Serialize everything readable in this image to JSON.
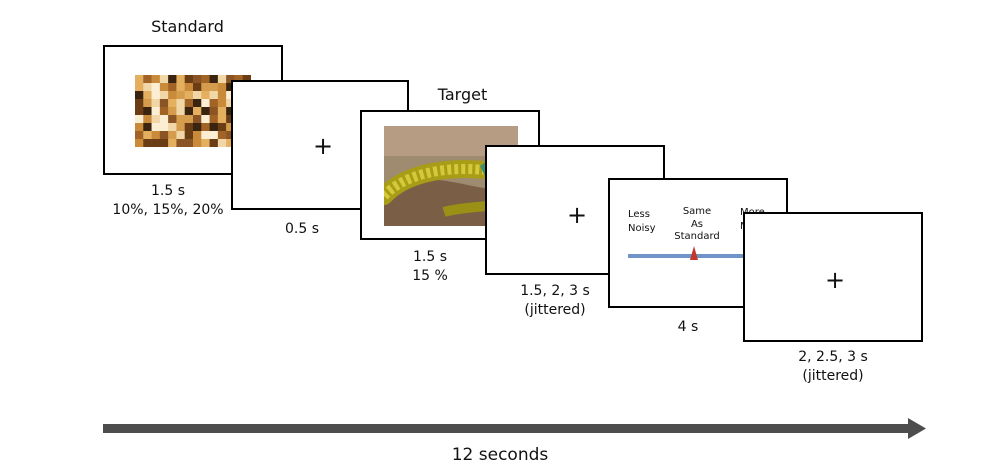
{
  "colors": {
    "frame_border": "#000000",
    "arrow": "#4d4d4d",
    "scale_line": "#6f94c7",
    "scale_marker": "#c0392b",
    "snake_body": "#b8ad1c",
    "snake_head": "#3d8f72",
    "target_bg": "#9e8b70"
  },
  "standard": {
    "title": "Standard",
    "duration": "1.5 s",
    "noise": "10%, 15%, 20%",
    "image": "scrambled-texture"
  },
  "fixation1": {
    "symbol": "+",
    "duration": "0.5 s"
  },
  "target": {
    "title": "Target",
    "duration": "1.5 s",
    "noise": "15 %",
    "image": "snake-photo"
  },
  "fixation2": {
    "symbol": "+",
    "duration": "1.5, 2, 3 s",
    "note": "(jittered)"
  },
  "rating": {
    "left_label_1": "Less",
    "left_label_2": "Noisy",
    "mid_label_1": "Same",
    "mid_label_2": "As",
    "mid_label_3": "Standard",
    "right_label_visible": "More",
    "right_label_2_visible": "N",
    "duration": "4 s"
  },
  "fixation3": {
    "symbol": "+",
    "duration": "2, 2.5, 3 s",
    "note": "(jittered)"
  },
  "timeline": {
    "label": "12 seconds"
  }
}
